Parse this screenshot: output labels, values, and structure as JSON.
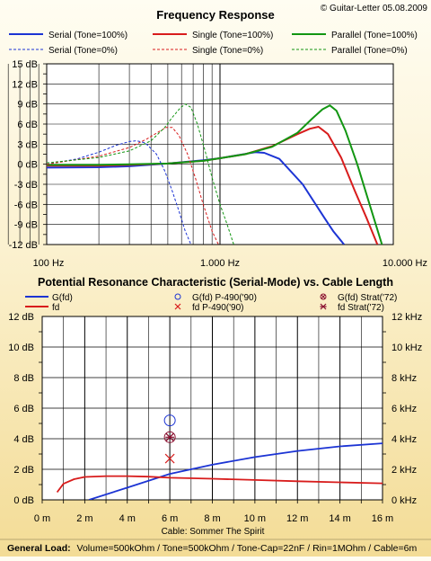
{
  "copyright": "© Guitar-Letter 05.08.2009",
  "charts": {
    "frequency_response": {
      "title": "Frequency Response",
      "legend": [
        {
          "name": "Serial (Tone=100%)",
          "color": "#1c34d4",
          "dash": false
        },
        {
          "name": "Single (Tone=100%)",
          "color": "#d81c1c",
          "dash": false
        },
        {
          "name": "Parallel (Tone=100%)",
          "color": "#129612",
          "dash": false
        },
        {
          "name": "Serial (Tone=0%)",
          "color": "#1c34d4",
          "dash": true
        },
        {
          "name": "Single (Tone=0%)",
          "color": "#d81c1c",
          "dash": true
        },
        {
          "name": "Parallel (Tone=0%)",
          "color": "#129612",
          "dash": true
        }
      ],
      "y_ticks": [
        "15 dB",
        "12 dB",
        "9 dB",
        "6 dB",
        "3 dB",
        "0 dB",
        "-3 dB",
        "-6 dB",
        "-9 dB",
        "-12 dB"
      ],
      "x_ticks": [
        "100 Hz",
        "1.000 Hz",
        "10.000 Hz"
      ]
    },
    "resonance": {
      "title": "Potential Resonance Characteristic (Serial-Mode) vs. Cable Length",
      "legend": [
        {
          "name": "G(fd)",
          "color": "#1c34d4",
          "kind": "line"
        },
        {
          "name": "G(fd) P-490('90)",
          "color": "#1c34d4",
          "kind": "circle"
        },
        {
          "name": "G(fd) Strat('72)",
          "color": "#8a1030",
          "kind": "diamond"
        },
        {
          "name": "fd",
          "color": "#d81c1c",
          "kind": "line"
        },
        {
          "name": "fd P-490('90)",
          "color": "#d81c1c",
          "kind": "x"
        },
        {
          "name": "fd Strat('72)",
          "color": "#8a1030",
          "kind": "star"
        }
      ],
      "y_left_ticks": [
        "12 dB",
        "10 dB",
        "8 dB",
        "6 dB",
        "4 dB",
        "2 dB",
        "0 dB"
      ],
      "y_right_ticks": [
        "12 kHz",
        "10 kHz",
        "8 kHz",
        "6 kHz",
        "4 kHz",
        "2 kHz",
        "0 kHz"
      ],
      "x_ticks": [
        "0 m",
        "2 m",
        "4 m",
        "6 m",
        "8 m",
        "10 m",
        "12 m",
        "14 m",
        "16 m"
      ],
      "xlabel": "Cable: Sommer The Spirit"
    }
  },
  "footer": {
    "label": "General Load:",
    "text": "Volume=500kOhm / Tone=500kOhm / Tone-Cap=22nF / Rin=1MOhm / Cable=6m"
  },
  "chart_data": [
    {
      "type": "line",
      "title": "Frequency Response",
      "x_scale": "log",
      "xlim": [
        100,
        10000
      ],
      "ylim": [
        -12,
        15
      ],
      "grid": true,
      "legend_position": "top",
      "series": [
        {
          "name": "Serial (Tone=100%)",
          "color": "#1c34d4",
          "dash": false,
          "points": [
            [
              100,
              -0.5
            ],
            [
              200,
              -0.45
            ],
            [
              300,
              -0.3
            ],
            [
              500,
              0.1
            ],
            [
              800,
              0.6
            ],
            [
              1000,
              0.9
            ],
            [
              1300,
              1.4
            ],
            [
              1600,
              1.8
            ],
            [
              1800,
              1.7
            ],
            [
              2200,
              0.8
            ],
            [
              3000,
              -3
            ],
            [
              4000,
              -8
            ],
            [
              4500,
              -10
            ],
            [
              5200,
              -12
            ]
          ]
        },
        {
          "name": "Single (Tone=100%)",
          "color": "#d81c1c",
          "dash": false,
          "points": [
            [
              100,
              -0.2
            ],
            [
              200,
              -0.2
            ],
            [
              300,
              -0.1
            ],
            [
              500,
              0.1
            ],
            [
              800,
              0.5
            ],
            [
              1000,
              0.9
            ],
            [
              1400,
              1.5
            ],
            [
              2000,
              2.7
            ],
            [
              2800,
              4.5
            ],
            [
              3300,
              5.3
            ],
            [
              3700,
              5.6
            ],
            [
              4200,
              4.5
            ],
            [
              5000,
              1
            ],
            [
              6000,
              -4
            ],
            [
              7000,
              -8
            ],
            [
              8100,
              -12
            ]
          ]
        },
        {
          "name": "Parallel (Tone=100%)",
          "color": "#129612",
          "dash": false,
          "points": [
            [
              100,
              -0.1
            ],
            [
              200,
              -0.1
            ],
            [
              300,
              0
            ],
            [
              500,
              0.1
            ],
            [
              800,
              0.5
            ],
            [
              1000,
              0.9
            ],
            [
              1400,
              1.5
            ],
            [
              2000,
              2.6
            ],
            [
              2800,
              4.7
            ],
            [
              3400,
              6.8
            ],
            [
              3900,
              8.2
            ],
            [
              4300,
              8.8
            ],
            [
              4700,
              8
            ],
            [
              5300,
              5
            ],
            [
              6200,
              0
            ],
            [
              7300,
              -6
            ],
            [
              8600,
              -12
            ]
          ]
        },
        {
          "name": "Serial (Tone=0%)",
          "color": "#1c34d4",
          "dash": true,
          "points": [
            [
              100,
              0
            ],
            [
              150,
              0.8
            ],
            [
              200,
              1.8
            ],
            [
              250,
              2.8
            ],
            [
              300,
              3.4
            ],
            [
              330,
              3.5
            ],
            [
              370,
              3.2
            ],
            [
              430,
              1.5
            ],
            [
              480,
              -1
            ],
            [
              530,
              -4
            ],
            [
              580,
              -7
            ],
            [
              630,
              -10
            ],
            [
              680,
              -12
            ]
          ]
        },
        {
          "name": "Single (Tone=0%)",
          "color": "#d81c1c",
          "dash": true,
          "points": [
            [
              100,
              0
            ],
            [
              200,
              1.2
            ],
            [
              300,
              2.5
            ],
            [
              380,
              3.8
            ],
            [
              440,
              4.8
            ],
            [
              490,
              5.5
            ],
            [
              530,
              5.5
            ],
            [
              580,
              4.3
            ],
            [
              650,
              1.5
            ],
            [
              720,
              -2
            ],
            [
              800,
              -6
            ],
            [
              900,
              -10
            ],
            [
              980,
              -12
            ]
          ]
        },
        {
          "name": "Parallel (Tone=0%)",
          "color": "#129612",
          "dash": true,
          "points": [
            [
              100,
              0.2
            ],
            [
              200,
              1
            ],
            [
              300,
              2
            ],
            [
              400,
              3.5
            ],
            [
              480,
              5.5
            ],
            [
              530,
              7
            ],
            [
              590,
              8.4
            ],
            [
              630,
              9
            ],
            [
              680,
              8.5
            ],
            [
              740,
              6
            ],
            [
              820,
              2
            ],
            [
              900,
              -2
            ],
            [
              1000,
              -6
            ],
            [
              1100,
              -9
            ],
            [
              1200,
              -12
            ]
          ]
        }
      ]
    },
    {
      "type": "line",
      "title": "Potential Resonance Characteristic (Serial-Mode) vs. Cable Length",
      "xlabel": "Cable: Sommer The Spirit",
      "xlim": [
        0,
        16
      ],
      "ylim_left": [
        0,
        12
      ],
      "ylim_right": [
        0,
        12
      ],
      "grid": true,
      "series": [
        {
          "name": "G(fd)",
          "axis": "left",
          "unit": "dB",
          "color": "#1c34d4",
          "points": [
            [
              2.2,
              0
            ],
            [
              4,
              0.8
            ],
            [
              6,
              1.7
            ],
            [
              8,
              2.3
            ],
            [
              10,
              2.8
            ],
            [
              12,
              3.2
            ],
            [
              14,
              3.5
            ],
            [
              16,
              3.7
            ]
          ]
        },
        {
          "name": "fd",
          "axis": "right",
          "unit": "kHz",
          "color": "#d81c1c",
          "points": [
            [
              0.7,
              0.5
            ],
            [
              1,
              1.05
            ],
            [
              1.5,
              1.35
            ],
            [
              2,
              1.5
            ],
            [
              3,
              1.55
            ],
            [
              4,
              1.55
            ],
            [
              5,
              1.52
            ],
            [
              6,
              1.45
            ],
            [
              8,
              1.38
            ],
            [
              10,
              1.3
            ],
            [
              12,
              1.22
            ],
            [
              14,
              1.15
            ],
            [
              16,
              1.08
            ]
          ]
        },
        {
          "name": "G(fd) P-490('90)",
          "axis": "left",
          "marker": "circle",
          "color": "#1c34d4",
          "points": [
            [
              6,
              5.2
            ]
          ]
        },
        {
          "name": "fd P-490('90)",
          "axis": "right",
          "marker": "x",
          "color": "#d81c1c",
          "points": [
            [
              6,
              2.7
            ]
          ]
        },
        {
          "name": "G(fd) Strat('72)",
          "axis": "left",
          "marker": "diamond",
          "color": "#8a1030",
          "points": [
            [
              6,
              4.1
            ]
          ]
        },
        {
          "name": "fd Strat('72)",
          "axis": "right",
          "marker": "star",
          "color": "#8a1030",
          "points": [
            [
              6,
              4.1
            ]
          ]
        }
      ]
    }
  ]
}
